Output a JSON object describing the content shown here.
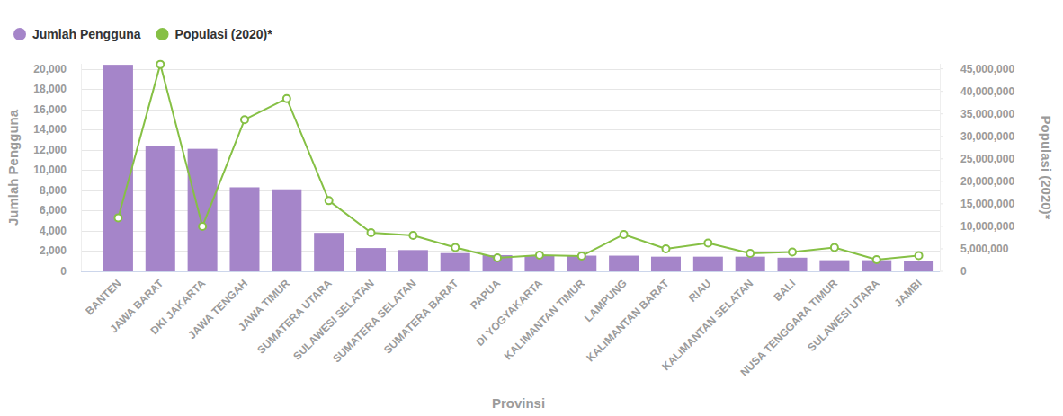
{
  "chart_data": {
    "type": "bar",
    "x_label": "Provinsi",
    "y_label": "Jumlah Pengguna",
    "y2_label": "Populasi (2020)*",
    "categories": [
      "BANTEN",
      "JAWA BARAT",
      "DKI JAKARTA",
      "JAWA TENGAH",
      "JAWA TIMUR",
      "SUMATERA UTARA",
      "SULAWESI SELATAN",
      "SUMATERA SELATAN",
      "SUMATERA BARAT",
      "PAPUA",
      "DI YOGYAKARTA",
      "KALIMANTAN TIMUR",
      "LAMPUNG",
      "KALIMANTAN BARAT",
      "RIAU",
      "KALIMANTAN SELATAN",
      "BALI",
      "NUSA TENGGARA TIMUR",
      "SULAWESI UTARA",
      "JAMBI"
    ],
    "series": [
      {
        "name": "Jumlah Pengguna",
        "type": "bar",
        "color": "#a585c9",
        "values": [
          20400,
          12400,
          12100,
          8300,
          8100,
          3800,
          2300,
          2100,
          1800,
          1600,
          1550,
          1550,
          1550,
          1450,
          1450,
          1450,
          1350,
          1100,
          1100,
          1000
        ]
      },
      {
        "name": "Populasi (2020)*",
        "type": "line",
        "color": "#86c045",
        "marker": "circle",
        "axis": "y2",
        "values": [
          11900000,
          46000000,
          10000000,
          33700000,
          38400000,
          15700000,
          8600000,
          8000000,
          5300000,
          3000000,
          3600000,
          3400000,
          8200000,
          5000000,
          6300000,
          4000000,
          4300000,
          5300000,
          2600000,
          3500000
        ]
      }
    ],
    "ylim": [
      0,
      20500
    ],
    "yticks": [
      0,
      {
        "value": 2000,
        "label": "2,000"
      },
      {
        "value": 4000,
        "label": "4,000"
      },
      {
        "value": 6000,
        "label": "6,000"
      },
      {
        "value": 8000,
        "label": "8,000"
      },
      {
        "value": 10000,
        "label": "10,000"
      },
      {
        "value": 12000,
        "label": "12,000"
      },
      {
        "value": 14000,
        "label": "14,000"
      },
      {
        "value": 16000,
        "label": "16,000"
      },
      {
        "value": 18000,
        "label": "18,000"
      },
      {
        "value": 20000,
        "label": "20,000"
      }
    ],
    "y2lim": [
      0,
      46125000
    ],
    "y2ticks": [
      0,
      {
        "value": 5000000,
        "label": "5,000,000"
      },
      {
        "value": 10000000,
        "label": "10,000,000"
      },
      {
        "value": 15000000,
        "label": "15,000,000"
      },
      {
        "value": 20000000,
        "label": "20,000,000"
      },
      {
        "value": 25000000,
        "label": "25,000,000"
      },
      {
        "value": 30000000,
        "label": "30,000,000"
      },
      {
        "value": 35000000,
        "label": "35,000,000"
      },
      {
        "value": 40000000,
        "label": "40,000,000"
      },
      {
        "value": 45000000,
        "label": "45,000,000"
      }
    ],
    "grid": true,
    "legend": "top-left"
  }
}
